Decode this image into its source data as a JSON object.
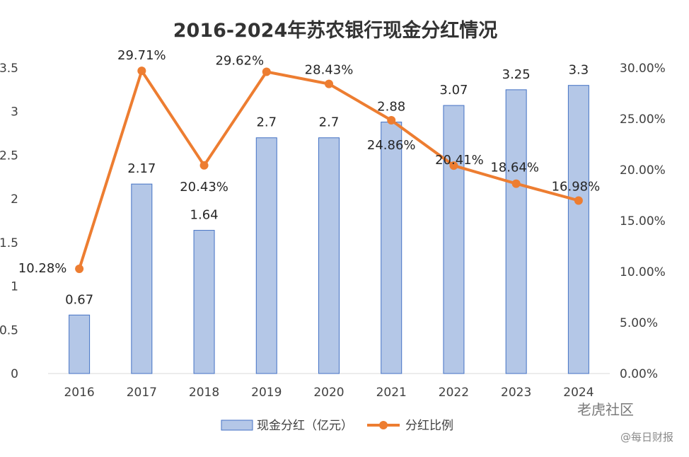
{
  "chart_data": {
    "type": "bar",
    "title": "2016-2024年苏农银行现金分红情况",
    "categories": [
      "2016",
      "2017",
      "2018",
      "2019",
      "2020",
      "2021",
      "2022",
      "2023",
      "2024"
    ],
    "series": [
      {
        "name": "现金分红（亿元）",
        "type": "bar",
        "axis": "left",
        "values": [
          0.67,
          2.17,
          1.64,
          2.7,
          2.7,
          2.88,
          3.07,
          3.25,
          3.3
        ],
        "labels": [
          "0.67",
          "2.17",
          "1.64",
          "2.7",
          "2.7",
          "2.88",
          "3.07",
          "3.25",
          "3.3"
        ]
      },
      {
        "name": "分红比例",
        "type": "line",
        "axis": "right",
        "values": [
          10.28,
          29.71,
          20.43,
          29.62,
          28.43,
          24.86,
          20.41,
          18.64,
          16.98
        ],
        "labels": [
          "10.28%",
          "29.71%",
          "20.43%",
          "29.62%",
          "28.43%",
          "24.86%",
          "20.41%",
          "18.64%",
          "16.98%"
        ]
      }
    ],
    "y_left": {
      "min": 0,
      "max": 3.5,
      "ticks": [
        "0",
        "0.5",
        "1",
        "1.5",
        "2",
        "2.5",
        "3",
        "3.5"
      ]
    },
    "y_right": {
      "min": 0,
      "max": 30,
      "ticks": [
        "0.00%",
        "5.00%",
        "10.00%",
        "15.00%",
        "20.00%",
        "25.00%",
        "30.00%"
      ]
    },
    "grid": false,
    "legend_position": "bottom",
    "colors": {
      "bar_fill": "#b4c7e7",
      "bar_stroke": "#4472c4",
      "line": "#ed7d31",
      "text": "#404040",
      "title": "#333333"
    }
  },
  "watermark": {
    "main": "老虎社区",
    "sub": "@每日财报"
  }
}
